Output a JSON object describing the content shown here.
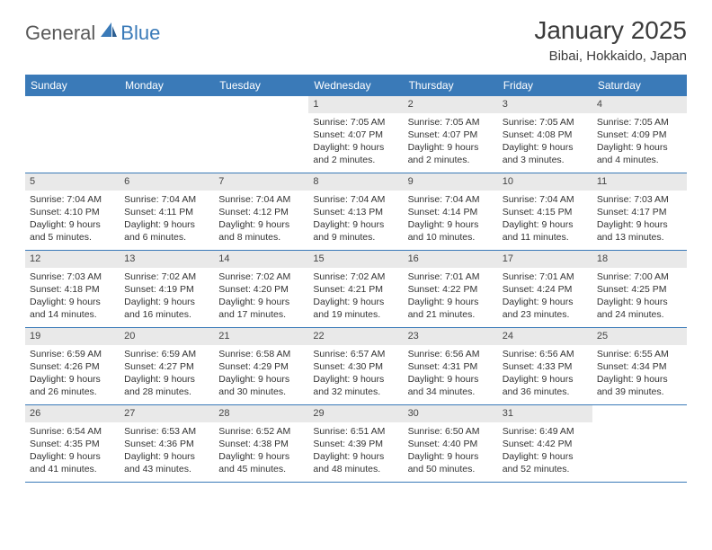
{
  "logo": {
    "text1": "General",
    "text2": "Blue"
  },
  "title": "January 2025",
  "location": "Bibai, Hokkaido, Japan",
  "colors": {
    "header_bg": "#3a7ab8",
    "header_text": "#ffffff",
    "daynum_bg": "#e9e9e9",
    "border": "#3a7ab8",
    "body_text": "#333333",
    "logo_gray": "#595959",
    "logo_blue": "#3a7ab8"
  },
  "day_labels": [
    "Sunday",
    "Monday",
    "Tuesday",
    "Wednesday",
    "Thursday",
    "Friday",
    "Saturday"
  ],
  "weeks": [
    [
      null,
      null,
      null,
      {
        "n": "1",
        "sunrise": "7:05 AM",
        "sunset": "4:07 PM",
        "dl1": "Daylight: 9 hours",
        "dl2": "and 2 minutes."
      },
      {
        "n": "2",
        "sunrise": "7:05 AM",
        "sunset": "4:07 PM",
        "dl1": "Daylight: 9 hours",
        "dl2": "and 2 minutes."
      },
      {
        "n": "3",
        "sunrise": "7:05 AM",
        "sunset": "4:08 PM",
        "dl1": "Daylight: 9 hours",
        "dl2": "and 3 minutes."
      },
      {
        "n": "4",
        "sunrise": "7:05 AM",
        "sunset": "4:09 PM",
        "dl1": "Daylight: 9 hours",
        "dl2": "and 4 minutes."
      }
    ],
    [
      {
        "n": "5",
        "sunrise": "7:04 AM",
        "sunset": "4:10 PM",
        "dl1": "Daylight: 9 hours",
        "dl2": "and 5 minutes."
      },
      {
        "n": "6",
        "sunrise": "7:04 AM",
        "sunset": "4:11 PM",
        "dl1": "Daylight: 9 hours",
        "dl2": "and 6 minutes."
      },
      {
        "n": "7",
        "sunrise": "7:04 AM",
        "sunset": "4:12 PM",
        "dl1": "Daylight: 9 hours",
        "dl2": "and 8 minutes."
      },
      {
        "n": "8",
        "sunrise": "7:04 AM",
        "sunset": "4:13 PM",
        "dl1": "Daylight: 9 hours",
        "dl2": "and 9 minutes."
      },
      {
        "n": "9",
        "sunrise": "7:04 AM",
        "sunset": "4:14 PM",
        "dl1": "Daylight: 9 hours",
        "dl2": "and 10 minutes."
      },
      {
        "n": "10",
        "sunrise": "7:04 AM",
        "sunset": "4:15 PM",
        "dl1": "Daylight: 9 hours",
        "dl2": "and 11 minutes."
      },
      {
        "n": "11",
        "sunrise": "7:03 AM",
        "sunset": "4:17 PM",
        "dl1": "Daylight: 9 hours",
        "dl2": "and 13 minutes."
      }
    ],
    [
      {
        "n": "12",
        "sunrise": "7:03 AM",
        "sunset": "4:18 PM",
        "dl1": "Daylight: 9 hours",
        "dl2": "and 14 minutes."
      },
      {
        "n": "13",
        "sunrise": "7:02 AM",
        "sunset": "4:19 PM",
        "dl1": "Daylight: 9 hours",
        "dl2": "and 16 minutes."
      },
      {
        "n": "14",
        "sunrise": "7:02 AM",
        "sunset": "4:20 PM",
        "dl1": "Daylight: 9 hours",
        "dl2": "and 17 minutes."
      },
      {
        "n": "15",
        "sunrise": "7:02 AM",
        "sunset": "4:21 PM",
        "dl1": "Daylight: 9 hours",
        "dl2": "and 19 minutes."
      },
      {
        "n": "16",
        "sunrise": "7:01 AM",
        "sunset": "4:22 PM",
        "dl1": "Daylight: 9 hours",
        "dl2": "and 21 minutes."
      },
      {
        "n": "17",
        "sunrise": "7:01 AM",
        "sunset": "4:24 PM",
        "dl1": "Daylight: 9 hours",
        "dl2": "and 23 minutes."
      },
      {
        "n": "18",
        "sunrise": "7:00 AM",
        "sunset": "4:25 PM",
        "dl1": "Daylight: 9 hours",
        "dl2": "and 24 minutes."
      }
    ],
    [
      {
        "n": "19",
        "sunrise": "6:59 AM",
        "sunset": "4:26 PM",
        "dl1": "Daylight: 9 hours",
        "dl2": "and 26 minutes."
      },
      {
        "n": "20",
        "sunrise": "6:59 AM",
        "sunset": "4:27 PM",
        "dl1": "Daylight: 9 hours",
        "dl2": "and 28 minutes."
      },
      {
        "n": "21",
        "sunrise": "6:58 AM",
        "sunset": "4:29 PM",
        "dl1": "Daylight: 9 hours",
        "dl2": "and 30 minutes."
      },
      {
        "n": "22",
        "sunrise": "6:57 AM",
        "sunset": "4:30 PM",
        "dl1": "Daylight: 9 hours",
        "dl2": "and 32 minutes."
      },
      {
        "n": "23",
        "sunrise": "6:56 AM",
        "sunset": "4:31 PM",
        "dl1": "Daylight: 9 hours",
        "dl2": "and 34 minutes."
      },
      {
        "n": "24",
        "sunrise": "6:56 AM",
        "sunset": "4:33 PM",
        "dl1": "Daylight: 9 hours",
        "dl2": "and 36 minutes."
      },
      {
        "n": "25",
        "sunrise": "6:55 AM",
        "sunset": "4:34 PM",
        "dl1": "Daylight: 9 hours",
        "dl2": "and 39 minutes."
      }
    ],
    [
      {
        "n": "26",
        "sunrise": "6:54 AM",
        "sunset": "4:35 PM",
        "dl1": "Daylight: 9 hours",
        "dl2": "and 41 minutes."
      },
      {
        "n": "27",
        "sunrise": "6:53 AM",
        "sunset": "4:36 PM",
        "dl1": "Daylight: 9 hours",
        "dl2": "and 43 minutes."
      },
      {
        "n": "28",
        "sunrise": "6:52 AM",
        "sunset": "4:38 PM",
        "dl1": "Daylight: 9 hours",
        "dl2": "and 45 minutes."
      },
      {
        "n": "29",
        "sunrise": "6:51 AM",
        "sunset": "4:39 PM",
        "dl1": "Daylight: 9 hours",
        "dl2": "and 48 minutes."
      },
      {
        "n": "30",
        "sunrise": "6:50 AM",
        "sunset": "4:40 PM",
        "dl1": "Daylight: 9 hours",
        "dl2": "and 50 minutes."
      },
      {
        "n": "31",
        "sunrise": "6:49 AM",
        "sunset": "4:42 PM",
        "dl1": "Daylight: 9 hours",
        "dl2": "and 52 minutes."
      },
      null
    ]
  ]
}
